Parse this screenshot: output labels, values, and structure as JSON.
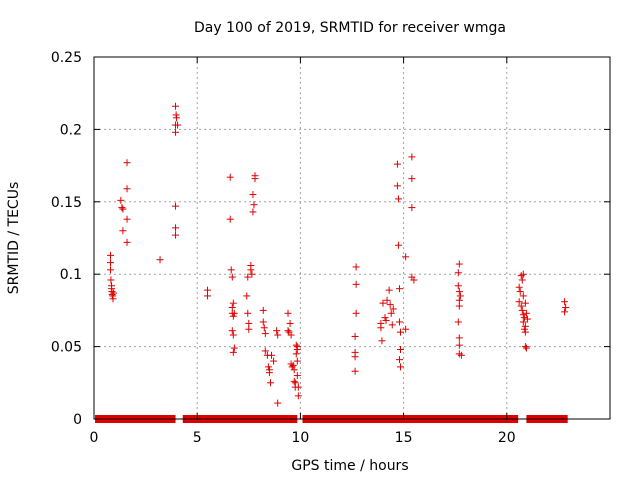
{
  "chart_data": {
    "type": "scatter",
    "title": "Day 100 of 2019, SRMTID for receiver wmga",
    "xlabel": "GPS time / hours",
    "ylabel": "SRMTID / TECUs",
    "xlim": [
      0,
      25
    ],
    "ylim": [
      0,
      0.25
    ],
    "xticks": [
      0,
      5,
      10,
      15,
      20
    ],
    "xtick_labels": [
      "0",
      "5",
      "10",
      "15",
      "20"
    ],
    "yticks": [
      0,
      0.05,
      0.1,
      0.15,
      0.2,
      0.25
    ],
    "ytick_labels": [
      "0",
      "0.05",
      "0.1",
      "0.15",
      "0.2",
      "0.25"
    ],
    "grid": true,
    "marker": "plus",
    "color": "#e00000",
    "zero_segments": [
      [
        0.05,
        3.95
      ],
      [
        4.3,
        9.85
      ],
      [
        10.1,
        20.55
      ],
      [
        20.95,
        22.95
      ]
    ],
    "series": [
      {
        "name": "SRMTID",
        "points": [
          [
            0.8,
            0.113
          ],
          [
            0.8,
            0.108
          ],
          [
            0.8,
            0.103
          ],
          [
            0.82,
            0.096
          ],
          [
            0.85,
            0.092
          ],
          [
            0.85,
            0.09
          ],
          [
            0.87,
            0.088
          ],
          [
            0.88,
            0.086
          ],
          [
            0.9,
            0.085
          ],
          [
            0.92,
            0.083
          ],
          [
            0.95,
            0.087
          ],
          [
            1.3,
            0.151
          ],
          [
            1.35,
            0.146
          ],
          [
            1.4,
            0.145
          ],
          [
            1.4,
            0.13
          ],
          [
            1.6,
            0.177
          ],
          [
            1.6,
            0.159
          ],
          [
            1.6,
            0.138
          ],
          [
            1.6,
            0.122
          ],
          [
            3.2,
            0.11
          ],
          [
            3.95,
            0.216
          ],
          [
            3.98,
            0.21
          ],
          [
            4.0,
            0.208
          ],
          [
            3.95,
            0.203
          ],
          [
            4.05,
            0.203
          ],
          [
            3.95,
            0.198
          ],
          [
            3.95,
            0.147
          ],
          [
            3.95,
            0.132
          ],
          [
            3.95,
            0.127
          ],
          [
            5.5,
            0.089
          ],
          [
            5.5,
            0.085
          ],
          [
            6.6,
            0.167
          ],
          [
            6.6,
            0.138
          ],
          [
            6.65,
            0.103
          ],
          [
            6.7,
            0.098
          ],
          [
            6.75,
            0.08
          ],
          [
            6.7,
            0.077
          ],
          [
            6.7,
            0.073
          ],
          [
            6.8,
            0.073
          ],
          [
            6.75,
            0.071
          ],
          [
            6.7,
            0.061
          ],
          [
            6.75,
            0.058
          ],
          [
            6.8,
            0.049
          ],
          [
            6.75,
            0.046
          ],
          [
            7.4,
            0.085
          ],
          [
            7.45,
            0.098
          ],
          [
            7.45,
            0.073
          ],
          [
            7.5,
            0.066
          ],
          [
            7.5,
            0.062
          ],
          [
            7.6,
            0.106
          ],
          [
            7.6,
            0.103
          ],
          [
            7.65,
            0.1
          ],
          [
            7.7,
            0.155
          ],
          [
            7.7,
            0.143
          ],
          [
            7.75,
            0.148
          ],
          [
            7.8,
            0.168
          ],
          [
            7.8,
            0.166
          ],
          [
            8.2,
            0.075
          ],
          [
            8.2,
            0.067
          ],
          [
            8.25,
            0.063
          ],
          [
            8.3,
            0.059
          ],
          [
            8.3,
            0.047
          ],
          [
            8.4,
            0.044
          ],
          [
            8.45,
            0.036
          ],
          [
            8.5,
            0.034
          ],
          [
            8.5,
            0.032
          ],
          [
            8.55,
            0.025
          ],
          [
            8.6,
            0.044
          ],
          [
            8.7,
            0.04
          ],
          [
            8.85,
            0.061
          ],
          [
            8.9,
            0.058
          ],
          [
            8.9,
            0.011
          ],
          [
            9.4,
            0.073
          ],
          [
            9.4,
            0.061
          ],
          [
            9.45,
            0.06
          ],
          [
            9.5,
            0.066
          ],
          [
            9.55,
            0.058
          ],
          [
            9.55,
            0.038
          ],
          [
            9.6,
            0.036
          ],
          [
            9.65,
            0.037
          ],
          [
            9.7,
            0.034
          ],
          [
            9.7,
            0.026
          ],
          [
            9.75,
            0.022
          ],
          [
            9.8,
            0.045
          ],
          [
            9.8,
            0.051
          ],
          [
            9.85,
            0.05
          ],
          [
            9.85,
            0.048
          ],
          [
            9.85,
            0.04
          ],
          [
            9.85,
            0.03
          ],
          [
            9.9,
            0.016
          ],
          [
            9.9,
            0.022
          ],
          [
            9.75,
            0.025
          ],
          [
            12.7,
            0.105
          ],
          [
            12.7,
            0.093
          ],
          [
            12.7,
            0.073
          ],
          [
            12.65,
            0.057
          ],
          [
            12.65,
            0.046
          ],
          [
            12.65,
            0.043
          ],
          [
            12.65,
            0.033
          ],
          [
            13.9,
            0.066
          ],
          [
            13.9,
            0.063
          ],
          [
            13.95,
            0.054
          ],
          [
            14.0,
            0.08
          ],
          [
            14.1,
            0.07
          ],
          [
            14.15,
            0.068
          ],
          [
            14.2,
            0.082
          ],
          [
            14.3,
            0.089
          ],
          [
            14.35,
            0.079
          ],
          [
            14.4,
            0.073
          ],
          [
            14.45,
            0.065
          ],
          [
            14.5,
            0.076
          ],
          [
            14.7,
            0.176
          ],
          [
            14.7,
            0.161
          ],
          [
            14.75,
            0.152
          ],
          [
            14.75,
            0.12
          ],
          [
            14.8,
            0.09
          ],
          [
            14.8,
            0.067
          ],
          [
            14.85,
            0.06
          ],
          [
            14.85,
            0.048
          ],
          [
            14.8,
            0.041
          ],
          [
            14.85,
            0.036
          ],
          [
            15.1,
            0.112
          ],
          [
            15.1,
            0.062
          ],
          [
            15.4,
            0.181
          ],
          [
            15.4,
            0.166
          ],
          [
            15.4,
            0.146
          ],
          [
            15.4,
            0.098
          ],
          [
            15.5,
            0.096
          ],
          [
            17.7,
            0.107
          ],
          [
            17.65,
            0.101
          ],
          [
            17.65,
            0.092
          ],
          [
            17.7,
            0.088
          ],
          [
            17.75,
            0.085
          ],
          [
            17.7,
            0.082
          ],
          [
            17.7,
            0.078
          ],
          [
            17.65,
            0.067
          ],
          [
            17.7,
            0.056
          ],
          [
            17.7,
            0.051
          ],
          [
            17.7,
            0.045
          ],
          [
            17.8,
            0.044
          ],
          [
            20.6,
            0.091
          ],
          [
            20.65,
            0.088
          ],
          [
            20.6,
            0.081
          ],
          [
            20.7,
            0.099
          ],
          [
            20.75,
            0.096
          ],
          [
            20.8,
            0.1
          ],
          [
            20.7,
            0.078
          ],
          [
            20.75,
            0.075
          ],
          [
            20.8,
            0.072
          ],
          [
            20.85,
            0.07
          ],
          [
            20.8,
            0.067
          ],
          [
            20.9,
            0.064
          ],
          [
            20.85,
            0.062
          ],
          [
            20.9,
            0.06
          ],
          [
            20.95,
            0.073
          ],
          [
            21.0,
            0.069
          ],
          [
            20.9,
            0.05
          ],
          [
            20.95,
            0.049
          ],
          [
            20.8,
            0.085
          ],
          [
            20.9,
            0.08
          ],
          [
            22.8,
            0.081
          ],
          [
            22.85,
            0.077
          ],
          [
            22.8,
            0.074
          ]
        ]
      }
    ]
  }
}
